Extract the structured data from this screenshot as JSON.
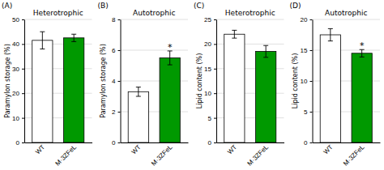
{
  "chart_data": [
    {
      "type": "bar",
      "title": "Heterotrophic",
      "ylabel": "Paramylon storage (%)",
      "categories": [
        "WT",
        "M·3ZFeL"
      ],
      "values": [
        41.5,
        42.5
      ],
      "errors": [
        3.5,
        1.5
      ],
      "colors": [
        "white",
        "#009900"
      ],
      "ylim": [
        0,
        50
      ],
      "yticks": [
        0,
        10,
        20,
        30,
        40,
        50
      ],
      "grid": true,
      "annotations": [
        {
          "text": "(A)"
        }
      ]
    },
    {
      "type": "bar",
      "title": "Autotrophic",
      "ylabel": "Paramylon storage (%)",
      "categories": [
        "WT",
        "M·3ZFeL"
      ],
      "values": [
        3.3,
        5.5
      ],
      "errors": [
        0.3,
        0.45
      ],
      "colors": [
        "white",
        "#009900"
      ],
      "ylim": [
        0,
        8
      ],
      "yticks": [
        0,
        2,
        4,
        6,
        8
      ],
      "grid": true,
      "annotations": [
        {
          "text": "(B)"
        },
        {
          "text": "*",
          "category": "M·3ZFeL"
        }
      ]
    },
    {
      "type": "bar",
      "title": "Heterotrophic",
      "ylabel": "Lipid content (%)",
      "categories": [
        "WT",
        "M·3ZFeL"
      ],
      "values": [
        22.0,
        18.5
      ],
      "errors": [
        0.8,
        1.2
      ],
      "colors": [
        "white",
        "#009900"
      ],
      "ylim": [
        0,
        25
      ],
      "yticks": [
        0,
        5,
        10,
        15,
        20,
        25
      ],
      "grid": true,
      "annotations": [
        {
          "text": "(C)"
        }
      ]
    },
    {
      "type": "bar",
      "title": "Autotrophic",
      "ylabel": "Lipid content (%)",
      "categories": [
        "WT",
        "M·3ZFeL"
      ],
      "values": [
        17.5,
        14.5
      ],
      "errors": [
        1.0,
        0.6
      ],
      "colors": [
        "white",
        "#009900"
      ],
      "ylim": [
        0,
        20
      ],
      "yticks": [
        0,
        5,
        10,
        15,
        20
      ],
      "grid": true,
      "annotations": [
        {
          "text": "(D)"
        },
        {
          "text": "*",
          "category": "M·3ZFeL"
        }
      ]
    }
  ]
}
